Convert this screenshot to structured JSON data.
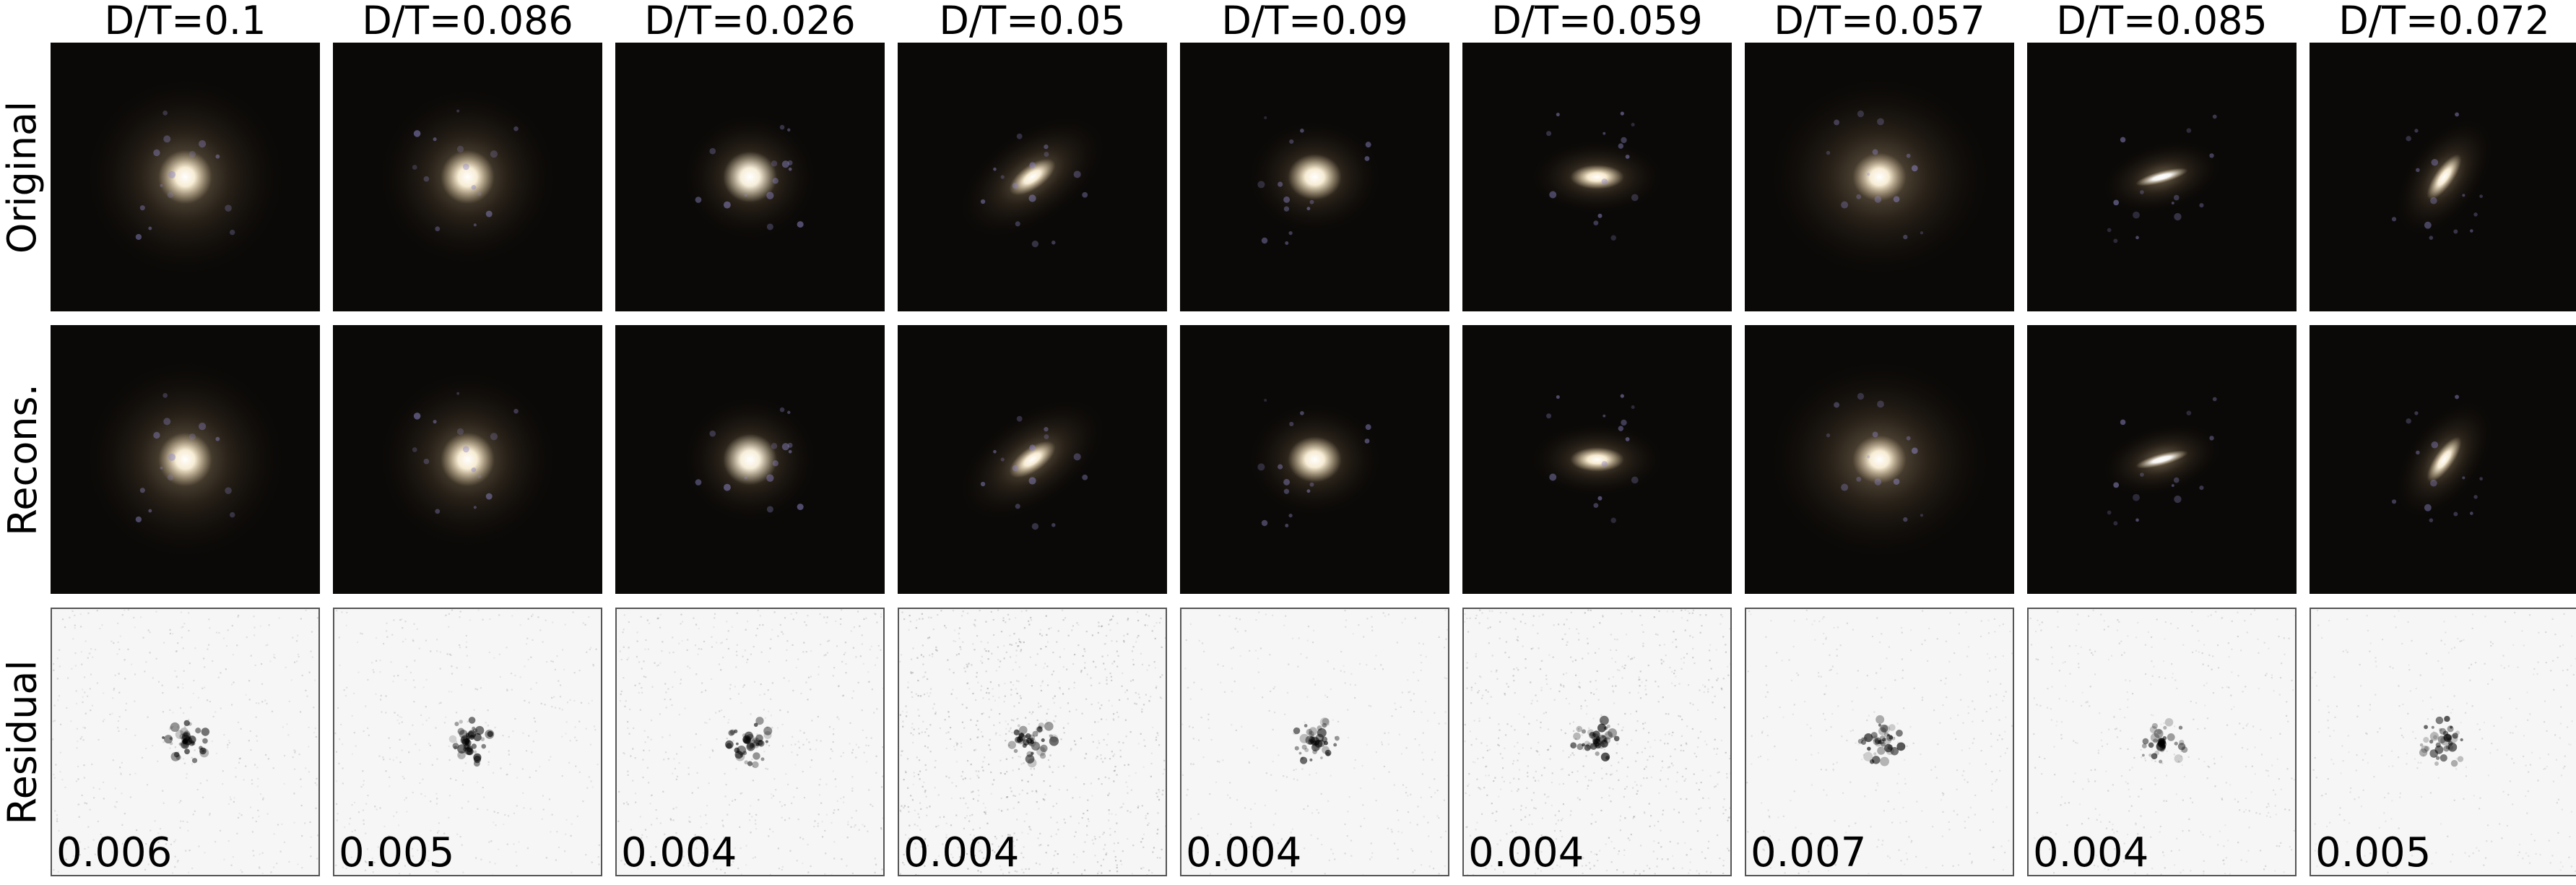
{
  "row_labels": [
    "Original",
    "Recons.",
    "Residual"
  ],
  "galaxies": [
    {
      "title": "D/T=0.1",
      "residual": "0.006",
      "halo": 0.9,
      "aspect": 1.0,
      "angle": 0,
      "core": "#fff4dc",
      "glow": "#d9c29a",
      "blue": "#8d86c4",
      "noise": 0.35
    },
    {
      "title": "D/T=0.086",
      "residual": "0.005",
      "halo": 0.8,
      "aspect": 1.0,
      "angle": 0,
      "core": "#fff4dc",
      "glow": "#d6bf96",
      "blue": "#8d86c4",
      "noise": 0.3
    },
    {
      "title": "D/T=0.026",
      "residual": "0.004",
      "halo": 0.6,
      "aspect": 0.95,
      "angle": 0,
      "core": "#fff6e2",
      "glow": "#d8c7a4",
      "blue": "#8d86c4",
      "noise": 0.45
    },
    {
      "title": "D/T=0.05",
      "residual": "0.004",
      "halo": 0.75,
      "aspect": 0.45,
      "angle": -35,
      "core": "#fff4dc",
      "glow": "#d6bf96",
      "blue": "#8d86c4",
      "noise": 0.85
    },
    {
      "title": "D/T=0.09",
      "residual": "0.004",
      "halo": 0.6,
      "aspect": 0.85,
      "angle": 0,
      "core": "#fff4dc",
      "glow": "#d6bf96",
      "blue": "#8d86c4",
      "noise": 0.2
    },
    {
      "title": "D/T=0.059",
      "residual": "0.004",
      "halo": 0.6,
      "aspect": 0.45,
      "angle": 0,
      "core": "#fff2d6",
      "glow": "#d6bf96",
      "blue": "#8d86c4",
      "noise": 0.65
    },
    {
      "title": "D/T=0.057",
      "residual": "0.007",
      "halo": 1.0,
      "aspect": 0.9,
      "angle": 0,
      "core": "#fff4dc",
      "glow": "#cdb58f",
      "blue": "#8d86c4",
      "noise": 0.2
    },
    {
      "title": "D/T=0.085",
      "residual": "0.004",
      "halo": 0.55,
      "aspect": 0.22,
      "angle": -15,
      "core": "#ffffff",
      "glow": "#d6bf96",
      "blue": "#8d86c4",
      "noise": 0.3
    },
    {
      "title": "D/T=0.072",
      "residual": "0.005",
      "halo": 0.6,
      "aspect": 0.35,
      "angle": -55,
      "core": "#fff4dc",
      "glow": "#d6bf96",
      "blue": "#8d86c4",
      "noise": 0.2
    }
  ]
}
